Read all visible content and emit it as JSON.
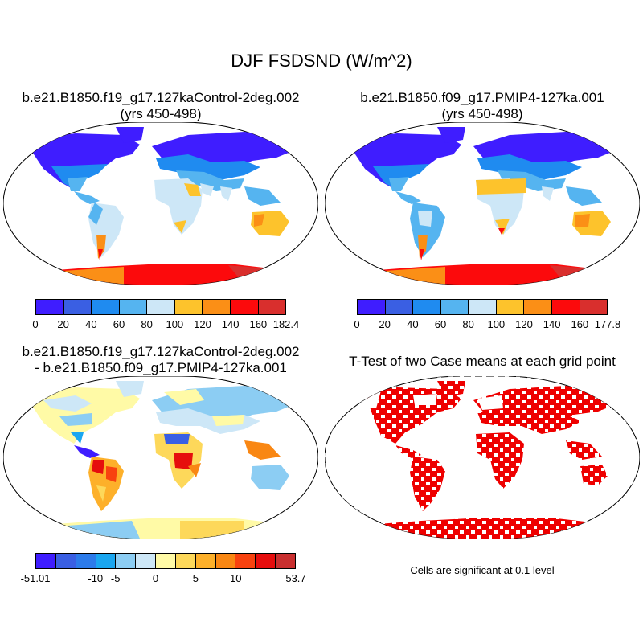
{
  "main_title": "DJF FSDSND (W/m^2)",
  "panels": {
    "top_left": {
      "title_line1": "b.e21.B1850.f19_g17.127kaControl-2deg.002",
      "title_line2": "(yrs 450-498)",
      "colorbar": {
        "colors": [
          "#3f1dff",
          "#3a5fe3",
          "#1f8bf0",
          "#55b4f0",
          "#cde7f7",
          "#fdc32c",
          "#fb8f16",
          "#fc0a0c",
          "#d92f2d"
        ],
        "labels": [
          "0",
          "20",
          "40",
          "60",
          "80",
          "100",
          "120",
          "140",
          "160",
          "182.4"
        ]
      }
    },
    "top_right": {
      "title_line1": "b.e21.B1850.f09_g17.PMIP4-127ka.001",
      "title_line2": "(yrs 450-498)",
      "colorbar": {
        "colors": [
          "#3f1dff",
          "#3a5fe3",
          "#1f8bf0",
          "#55b4f0",
          "#cde7f7",
          "#fdc32c",
          "#fb8f16",
          "#fc0a0c",
          "#d92f2d"
        ],
        "labels": [
          "0",
          "20",
          "40",
          "60",
          "80",
          "100",
          "120",
          "140",
          "160",
          "177.8"
        ]
      }
    },
    "bottom_left": {
      "title_line1": "b.e21.B1850.f19_g17.127kaControl-2deg.002",
      "title_line2": "- b.e21.B1850.f09_g17.PMIP4-127ka.001",
      "colorbar": {
        "colors": [
          "#3f1dff",
          "#3a5fe3",
          "#2c7bea",
          "#1aa6f0",
          "#8ccdf3",
          "#cde7f7",
          "#fffaa6",
          "#fdd85a",
          "#fdb02a",
          "#f98713",
          "#f8420f",
          "#e60d0d",
          "#c92f2f"
        ],
        "labels": [
          "-51.01",
          "-10",
          "-5",
          "0",
          "5",
          "10",
          "53.7"
        ]
      }
    },
    "bottom_right": {
      "title_line1": "T-Test of two Case means at each grid point",
      "note": "Cells are significant at 0.1 level"
    }
  },
  "map_colors": {
    "land_base": "#cde7f7",
    "ocean": "#ffffff",
    "significant": "#ee0000"
  }
}
